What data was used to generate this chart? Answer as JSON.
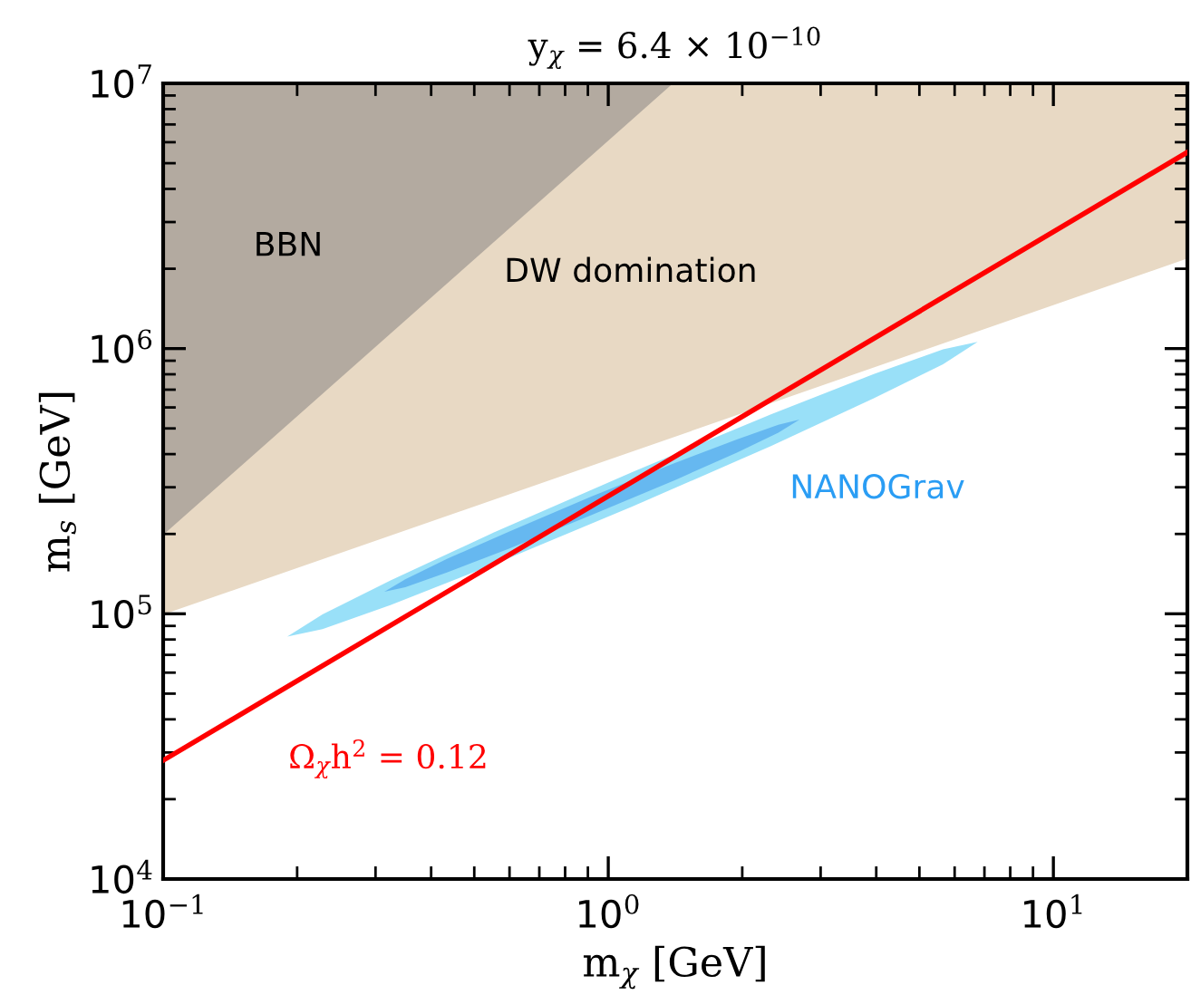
{
  "chart_data": {
    "type": "area",
    "title": "y$_{χ}$ = 6.4 × 10$^{−10}$",
    "xlabel": "m$_{χ}$ [GeV]",
    "ylabel": "m$_{s}$ [GeV]",
    "log": "xy",
    "xlim": [
      0.1,
      20
    ],
    "ylim": [
      10000,
      10000000
    ],
    "xticks": [
      {
        "value": 0.1,
        "label": "10$^{−1}$"
      },
      {
        "value": 1,
        "label": "10$^{0}$"
      },
      {
        "value": 10,
        "label": "10$^{1}$"
      }
    ],
    "yticks": [
      {
        "value": 10000,
        "label": "10$^{4}$"
      },
      {
        "value": 100000,
        "label": "10$^{5}$"
      },
      {
        "value": 1000000,
        "label": "10$^{6}$"
      },
      {
        "value": 10000000,
        "label": "10$^{7}$"
      }
    ],
    "grid": false,
    "legend": false,
    "series": [
      {
        "name": "DW domination",
        "color": "#e8d9c4",
        "x": [
          0.1,
          20,
          20,
          0.1,
          0.1
        ],
        "values": [
          100000,
          2200000,
          10000000,
          10000000,
          100000
        ]
      },
      {
        "name": "BBN",
        "color": "#b3aaa0",
        "x": [
          0.1,
          1.39,
          0.1,
          0.1
        ],
        "values": [
          200000,
          10000000,
          10000000,
          200000
        ]
      },
      {
        "name": "NANOGrav",
        "color": "#99e0f8",
        "x": [
          0.19,
          0.228,
          0.325,
          0.555,
          1.135,
          2.32,
          3.95,
          5.65,
          6.76,
          5.65,
          3.95,
          2.32,
          1.135,
          0.555,
          0.325,
          0.228,
          0.19
        ],
        "values": [
          82000,
          99500,
          134000,
          203000,
          343000,
          565000,
          802000,
          993000,
          1060000,
          873000,
          649000,
          429000,
          254000,
          154000,
          108000,
          87500,
          82000
        ]
      },
      {
        "color": "#66b8f0",
        "x": [
          0.314,
          0.35,
          0.434,
          0.598,
          0.918,
          1.41,
          1.95,
          2.41,
          2.69,
          2.41,
          1.95,
          1.41,
          0.918,
          0.598,
          0.434,
          0.35,
          0.314
        ],
        "values": [
          121000,
          135000,
          161000,
          204000,
          277000,
          370000,
          455000,
          516000,
          540000,
          482000,
          406000,
          319000,
          236000,
          176000,
          143000,
          126000,
          121000
        ]
      },
      {
        "name": "Ω$_{χ}$h$^{2}$ = 0.12",
        "type": "line",
        "color": "#ff0000",
        "x": [
          0.1,
          20
        ],
        "values": [
          28000,
          5500000
        ],
        "line_style": "solid",
        "marker": "none"
      }
    ]
  }
}
